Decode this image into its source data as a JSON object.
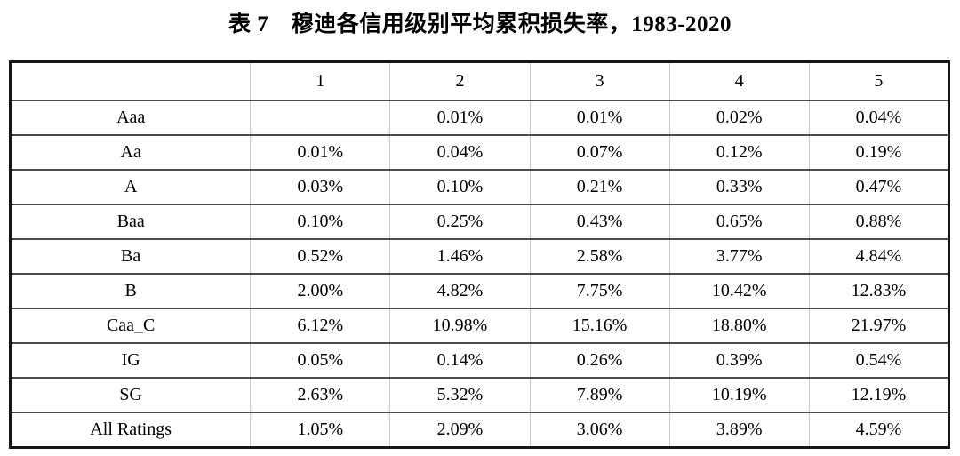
{
  "title": "表 7　穆迪各信用级别平均累积损失率，1983-2020",
  "table": {
    "columns": [
      "",
      "1",
      "2",
      "3",
      "4",
      "5"
    ],
    "rows": [
      {
        "label": "Aaa",
        "values": [
          "",
          "0.01%",
          "0.01%",
          "0.02%",
          "0.04%"
        ]
      },
      {
        "label": "Aa",
        "values": [
          "0.01%",
          "0.04%",
          "0.07%",
          "0.12%",
          "0.19%"
        ]
      },
      {
        "label": "A",
        "values": [
          "0.03%",
          "0.10%",
          "0.21%",
          "0.33%",
          "0.47%"
        ]
      },
      {
        "label": "Baa",
        "values": [
          "0.10%",
          "0.25%",
          "0.43%",
          "0.65%",
          "0.88%"
        ]
      },
      {
        "label": "Ba",
        "values": [
          "0.52%",
          "1.46%",
          "2.58%",
          "3.77%",
          "4.84%"
        ]
      },
      {
        "label": "B",
        "values": [
          "2.00%",
          "4.82%",
          "7.75%",
          "10.42%",
          "12.83%"
        ]
      },
      {
        "label": "Caa_C",
        "values": [
          "6.12%",
          "10.98%",
          "15.16%",
          "18.80%",
          "21.97%"
        ]
      },
      {
        "label": "IG",
        "values": [
          "0.05%",
          "0.14%",
          "0.26%",
          "0.39%",
          "0.54%"
        ]
      },
      {
        "label": "SG",
        "values": [
          "2.63%",
          "5.32%",
          "7.89%",
          "10.19%",
          "12.19%"
        ]
      },
      {
        "label": "All Ratings",
        "values": [
          "1.05%",
          "2.09%",
          "3.06%",
          "3.89%",
          "4.59%"
        ]
      }
    ]
  },
  "colors": {
    "outer_border": "#161616",
    "row_separator": "#4b4b4b",
    "column_separator": "#c9c9c9",
    "text": "#000000",
    "background": "#ffffff"
  }
}
